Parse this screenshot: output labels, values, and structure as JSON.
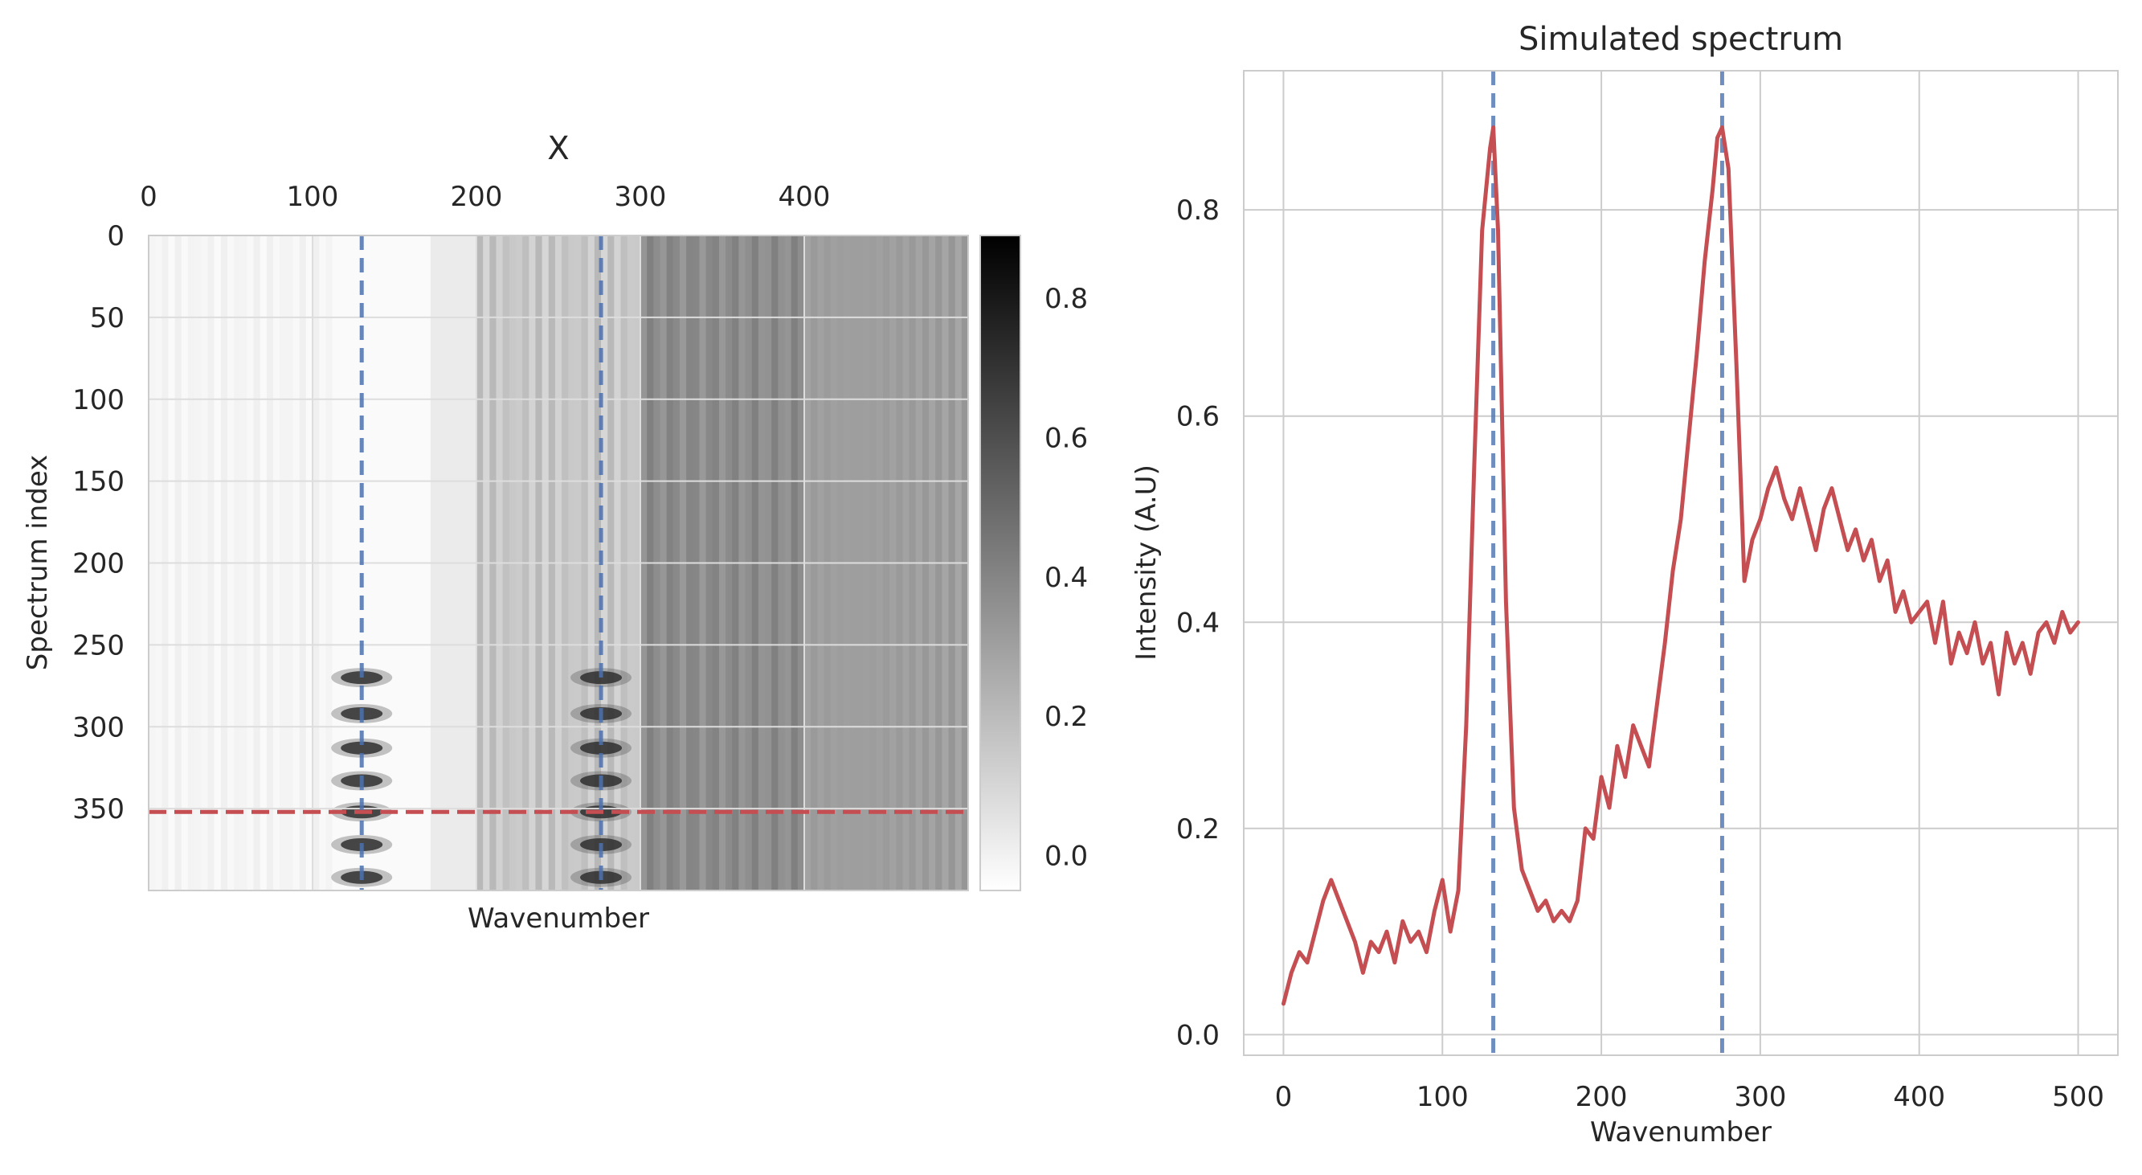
{
  "chart_data": [
    {
      "type": "heatmap",
      "title": "X",
      "xlabel": "Wavenumber",
      "ylabel": "Spectrum index",
      "x_ticks": [
        0,
        100,
        200,
        300,
        400
      ],
      "y_ticks": [
        0,
        50,
        100,
        150,
        200,
        250,
        300,
        350
      ],
      "x_range": [
        0,
        500
      ],
      "y_range": [
        0,
        400
      ],
      "grid": true,
      "cmap": "gray_r",
      "colorbar": {
        "ticks": [
          0.0,
          0.2,
          0.4,
          0.6,
          0.8
        ],
        "tick_labels": [
          "0.0",
          "0.2",
          "0.4",
          "0.6",
          "0.8"
        ],
        "vmin": -0.05,
        "vmax": 0.89
      },
      "vertical_markers": [
        130,
        276
      ],
      "horizontal_marker": 352,
      "peak_rows": [
        270,
        292,
        313,
        333,
        352,
        372,
        392
      ],
      "marker_colors": {
        "vertical": "#4c72b0",
        "horizontal": "#c44e52"
      }
    },
    {
      "type": "line",
      "title": "Simulated spectrum",
      "xlabel": "Wavenumber",
      "ylabel": "Intensity (A.U)",
      "xlim": [
        -25,
        525
      ],
      "ylim": [
        -0.02,
        0.935
      ],
      "x_ticks": [
        0,
        100,
        200,
        300,
        400,
        500
      ],
      "y_ticks": [
        0.0,
        0.2,
        0.4,
        0.6,
        0.8
      ],
      "y_tick_labels": [
        "0.0",
        "0.2",
        "0.4",
        "0.6",
        "0.8"
      ],
      "grid": true,
      "vertical_markers": [
        132,
        276
      ],
      "line_color": "#c44e52",
      "marker_color": "#4c72b0",
      "series": [
        {
          "x": [
            0,
            5,
            10,
            15,
            20,
            25,
            30,
            35,
            40,
            45,
            50,
            55,
            60,
            65,
            70,
            75,
            80,
            85,
            90,
            95,
            100,
            105,
            110,
            115,
            120,
            125,
            130,
            132,
            135,
            140,
            145,
            150,
            155,
            160,
            165,
            170,
            175,
            180,
            185,
            190,
            195,
            200,
            205,
            210,
            215,
            220,
            225,
            230,
            235,
            240,
            245,
            250,
            255,
            260,
            265,
            270,
            273,
            276,
            280,
            285,
            290,
            295,
            300,
            305,
            310,
            315,
            320,
            325,
            330,
            335,
            340,
            345,
            350,
            355,
            360,
            365,
            370,
            375,
            380,
            385,
            390,
            395,
            400,
            405,
            410,
            415,
            420,
            425,
            430,
            435,
            440,
            445,
            450,
            455,
            460,
            465,
            470,
            475,
            480,
            485,
            490,
            495,
            500
          ],
          "y": [
            0.03,
            0.06,
            0.08,
            0.07,
            0.1,
            0.13,
            0.15,
            0.13,
            0.11,
            0.09,
            0.06,
            0.09,
            0.08,
            0.1,
            0.07,
            0.11,
            0.09,
            0.1,
            0.08,
            0.12,
            0.15,
            0.1,
            0.14,
            0.3,
            0.55,
            0.78,
            0.86,
            0.88,
            0.78,
            0.42,
            0.22,
            0.16,
            0.14,
            0.12,
            0.13,
            0.11,
            0.12,
            0.11,
            0.13,
            0.2,
            0.19,
            0.25,
            0.22,
            0.28,
            0.25,
            0.3,
            0.28,
            0.26,
            0.32,
            0.38,
            0.45,
            0.5,
            0.58,
            0.66,
            0.75,
            0.82,
            0.87,
            0.88,
            0.84,
            0.65,
            0.44,
            0.48,
            0.5,
            0.53,
            0.55,
            0.52,
            0.5,
            0.53,
            0.5,
            0.47,
            0.51,
            0.53,
            0.5,
            0.47,
            0.49,
            0.46,
            0.48,
            0.44,
            0.46,
            0.41,
            0.43,
            0.4,
            0.41,
            0.42,
            0.38,
            0.42,
            0.36,
            0.39,
            0.37,
            0.4,
            0.36,
            0.38,
            0.33,
            0.39,
            0.36,
            0.38,
            0.35,
            0.39,
            0.4,
            0.38,
            0.41,
            0.39,
            0.4
          ]
        }
      ]
    }
  ]
}
